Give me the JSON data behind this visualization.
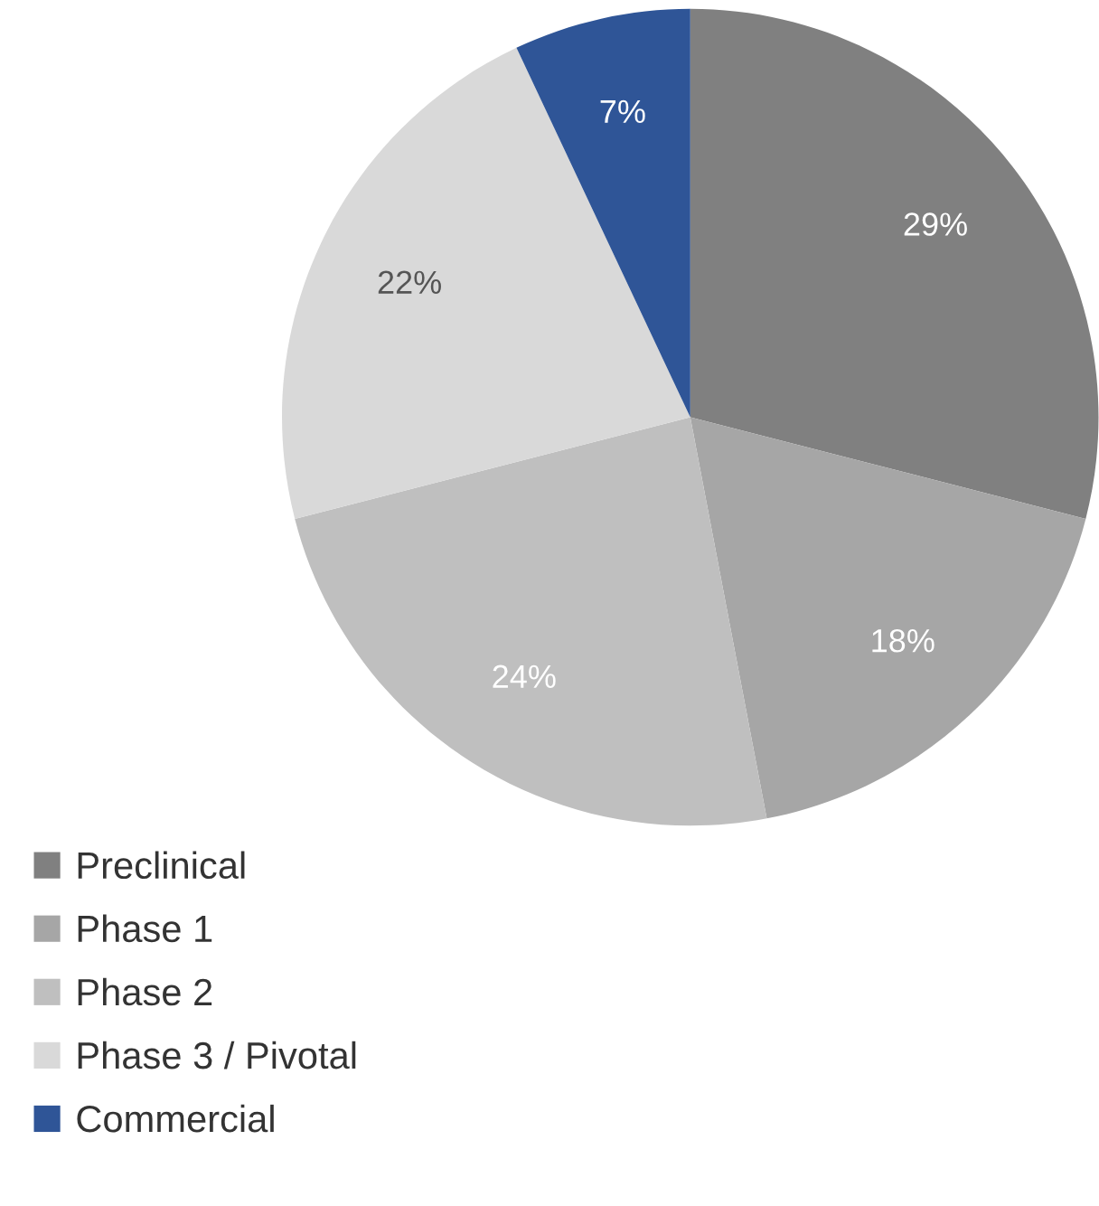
{
  "chart_data": {
    "type": "pie",
    "categories": [
      "Preclinical",
      "Phase 1",
      "Phase 2",
      "Phase 3 / Pivotal",
      "Commercial"
    ],
    "values": [
      29,
      18,
      24,
      22,
      7
    ],
    "colors": [
      "#808080",
      "#a6a6a6",
      "#bfbfbf",
      "#d9d9d9",
      "#2f5597"
    ],
    "value_labels": [
      "29%",
      "18%",
      "24%",
      "22%",
      "7%"
    ],
    "legend": "bottom left"
  }
}
